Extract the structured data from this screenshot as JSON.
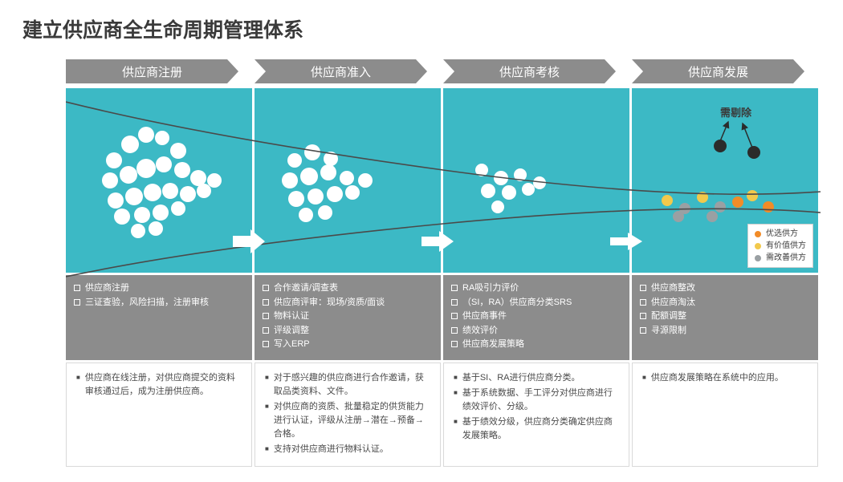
{
  "title": "建立供应商全生命周期管理体系",
  "colors": {
    "panel_bg": "#3cb9c5",
    "chevron_bg": "#8c8c8c",
    "white": "#ffffff",
    "funnel_line": "#4a4a4a",
    "text_dark": "#3a3a3a",
    "orange": "#f28c28",
    "yellow": "#f2c94c",
    "gray": "#9aa0a3"
  },
  "stages": [
    {
      "label": "供应商注册"
    },
    {
      "label": "供应商准入"
    },
    {
      "label": "供应商考核"
    },
    {
      "label": "供应商发展"
    }
  ],
  "eject_label": "需剔除",
  "legend": [
    {
      "color": "#f28c28",
      "label": "优选供方"
    },
    {
      "color": "#f2c94c",
      "label": "有价值供方"
    },
    {
      "color": "#9aa0a3",
      "label": "需改善供方"
    }
  ],
  "panel1_dots": [
    [
      60,
      90,
      10
    ],
    [
      80,
      70,
      11
    ],
    [
      100,
      58,
      10
    ],
    [
      120,
      62,
      9
    ],
    [
      140,
      78,
      10
    ],
    [
      55,
      115,
      10
    ],
    [
      78,
      108,
      11
    ],
    [
      100,
      100,
      12
    ],
    [
      122,
      95,
      10
    ],
    [
      145,
      102,
      10
    ],
    [
      165,
      112,
      10
    ],
    [
      185,
      115,
      9
    ],
    [
      62,
      140,
      10
    ],
    [
      85,
      135,
      11
    ],
    [
      108,
      130,
      11
    ],
    [
      130,
      128,
      10
    ],
    [
      152,
      132,
      10
    ],
    [
      172,
      128,
      9
    ],
    [
      70,
      160,
      10
    ],
    [
      95,
      158,
      10
    ],
    [
      118,
      155,
      10
    ],
    [
      140,
      150,
      9
    ],
    [
      90,
      178,
      9
    ],
    [
      112,
      175,
      9
    ]
  ],
  "panel2_dots": [
    [
      50,
      90,
      9
    ],
    [
      72,
      80,
      10
    ],
    [
      95,
      88,
      9
    ],
    [
      44,
      115,
      10
    ],
    [
      68,
      110,
      11
    ],
    [
      92,
      105,
      10
    ],
    [
      115,
      112,
      9
    ],
    [
      138,
      115,
      9
    ],
    [
      52,
      138,
      10
    ],
    [
      76,
      135,
      10
    ],
    [
      100,
      132,
      10
    ],
    [
      122,
      130,
      9
    ],
    [
      64,
      158,
      9
    ],
    [
      88,
      155,
      9
    ]
  ],
  "panel3_dots": [
    [
      48,
      102,
      8
    ],
    [
      72,
      112,
      9
    ],
    [
      96,
      108,
      8
    ],
    [
      120,
      118,
      8
    ],
    [
      56,
      128,
      9
    ],
    [
      82,
      130,
      9
    ],
    [
      106,
      126,
      8
    ],
    [
      68,
      148,
      8
    ]
  ],
  "panel4_dots_colored": [
    [
      44,
      140,
      7,
      "#f2c94c"
    ],
    [
      66,
      150,
      7,
      "#9aa0a3"
    ],
    [
      88,
      136,
      7,
      "#f2c94c"
    ],
    [
      110,
      148,
      7,
      "#9aa0a3"
    ],
    [
      132,
      142,
      7,
      "#f28c28"
    ],
    [
      58,
      160,
      7,
      "#9aa0a3"
    ],
    [
      100,
      160,
      7,
      "#9aa0a3"
    ],
    [
      150,
      134,
      7,
      "#f2c94c"
    ],
    [
      170,
      148,
      7,
      "#f28c28"
    ]
  ],
  "panel4_ejected": [
    [
      110,
      72,
      8
    ],
    [
      152,
      80,
      8
    ]
  ],
  "checklists": [
    [
      "供应商注册",
      "三证查验，风险扫描，注册审核"
    ],
    [
      "合作邀请/调查表",
      "供应商评审：现场/资质/面谈",
      "物料认证",
      "评级调整",
      "写入ERP"
    ],
    [
      "RA吸引力评价",
      "（SI，RA）供应商分类SRS",
      "供应商事件",
      "绩效评价",
      "供应商发展策略"
    ],
    [
      "供应商整改",
      "供应商淘汰",
      "配额调整",
      "寻源限制"
    ]
  ],
  "descriptions": [
    [
      "供应商在线注册，对供应商提交的资料审核通过后，成为注册供应商。"
    ],
    [
      "对于感兴趣的供应商进行合作邀请，获取品类资料、文件。",
      "对供应商的资质、批量稳定的供货能力进行认证，评级从注册→潜在→预备→合格。",
      "支持对供应商进行物料认证。"
    ],
    [
      "基于SI、RA进行供应商分类。",
      "基于系统数据、手工评分对供应商进行绩效评价、分级。",
      "基于绩效分级，供应商分类确定供应商发展策略。"
    ],
    [
      "供应商发展策略在系统中的应用。"
    ]
  ]
}
